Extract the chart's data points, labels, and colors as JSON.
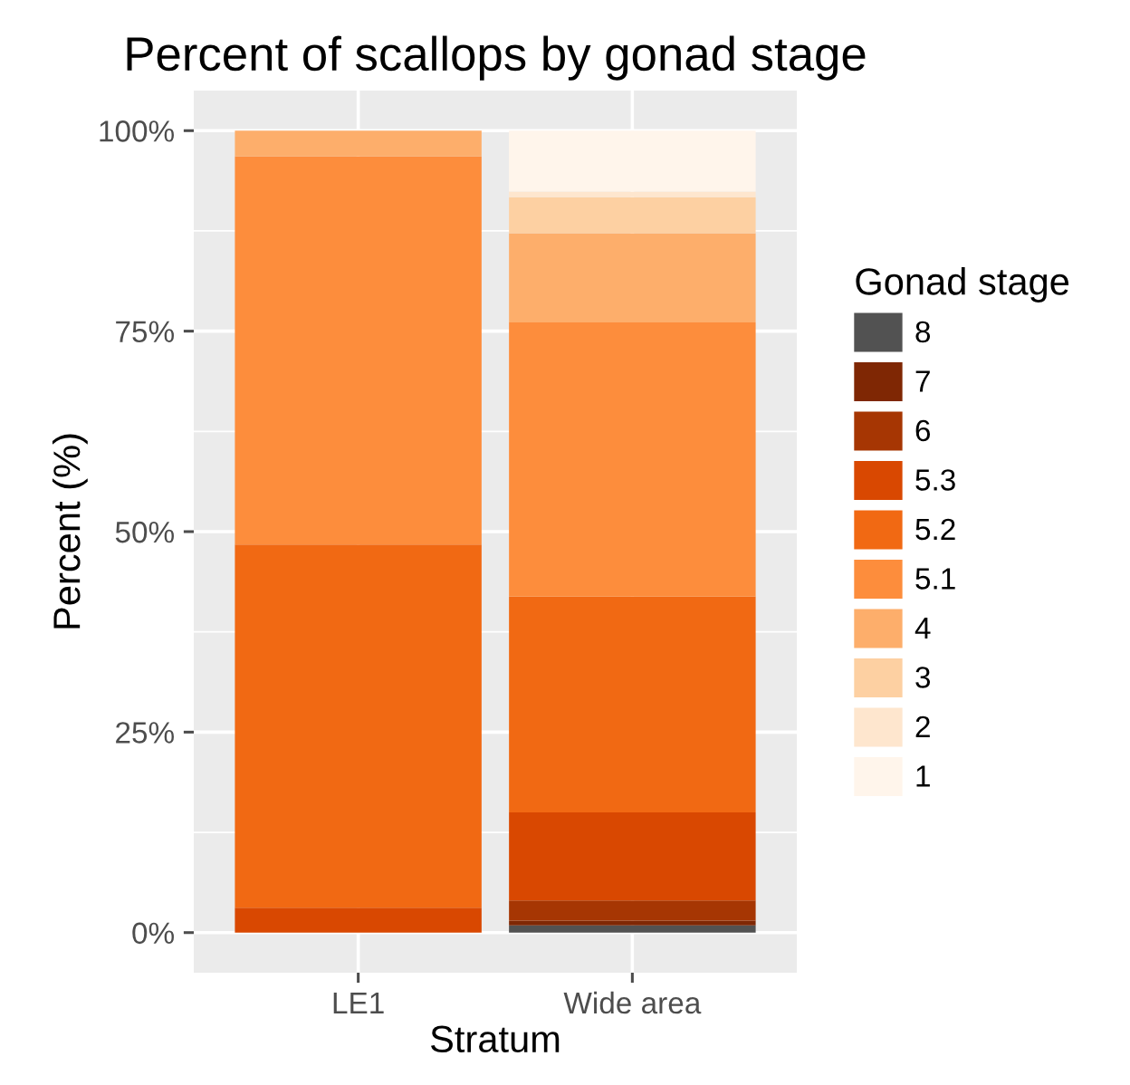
{
  "chart_data": {
    "type": "bar",
    "title": "Percent of scallops by gonad stage",
    "xlabel": "Stratum",
    "ylabel": "Percent (%)",
    "legend_title": "Gonad stage",
    "categories": [
      "LE1",
      "Wide area"
    ],
    "stacked": true,
    "series": [
      {
        "name": "8",
        "color": "#525252",
        "values": [
          0,
          0.9
        ]
      },
      {
        "name": "7",
        "color": "#7f2704",
        "values": [
          0,
          0.6
        ]
      },
      {
        "name": "6",
        "color": "#a63603",
        "values": [
          0,
          2.5
        ]
      },
      {
        "name": "5.3",
        "color": "#d94801",
        "values": [
          3.1,
          11.0
        ]
      },
      {
        "name": "5.2",
        "color": "#f16913",
        "values": [
          45.3,
          26.9
        ]
      },
      {
        "name": "5.1",
        "color": "#fd8d3c",
        "values": [
          48.4,
          34.2
        ]
      },
      {
        "name": "4",
        "color": "#fdae6b",
        "values": [
          3.2,
          11.1
        ]
      },
      {
        "name": "3",
        "color": "#fdd0a2",
        "values": [
          0,
          4.5
        ]
      },
      {
        "name": "2",
        "color": "#fee6ce",
        "values": [
          0,
          0.7
        ]
      },
      {
        "name": "1",
        "color": "#fff5eb",
        "values": [
          0,
          7.6
        ]
      }
    ],
    "ylim": [
      -5,
      105
    ],
    "yticks": [
      {
        "value": 0,
        "label": "0%"
      },
      {
        "value": 25,
        "label": "25%"
      },
      {
        "value": 50,
        "label": "50%"
      },
      {
        "value": 75,
        "label": "75%"
      },
      {
        "value": 100,
        "label": "100%"
      }
    ],
    "grid": true,
    "legend": "right"
  }
}
